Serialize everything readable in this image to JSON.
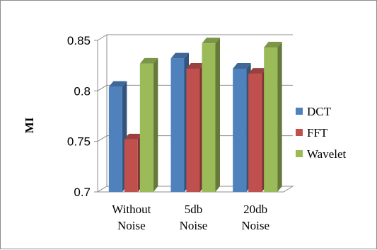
{
  "chart_data": {
    "type": "bar",
    "title": "",
    "xlabel": "",
    "ylabel": "MI",
    "ylim": [
      0.7,
      0.85
    ],
    "yticks": [
      "0.7",
      "0.75",
      "0.8",
      "0.85"
    ],
    "ytick_values": [
      0.7,
      0.75,
      0.8,
      0.85
    ],
    "grid": true,
    "legend_position": "right",
    "categories": [
      [
        "Without",
        "Noise"
      ],
      [
        "5db",
        "Noise"
      ],
      [
        "20db",
        "Noise"
      ]
    ],
    "series": [
      {
        "name": "DCT",
        "values": [
          0.804,
          0.832,
          0.822
        ],
        "color": "#4f81bd"
      },
      {
        "name": "FFT",
        "values": [
          0.752,
          0.822,
          0.817
        ],
        "color": "#c0504d"
      },
      {
        "name": "Wavelet",
        "values": [
          0.827,
          0.847,
          0.843
        ],
        "color": "#9bbb59"
      }
    ]
  }
}
